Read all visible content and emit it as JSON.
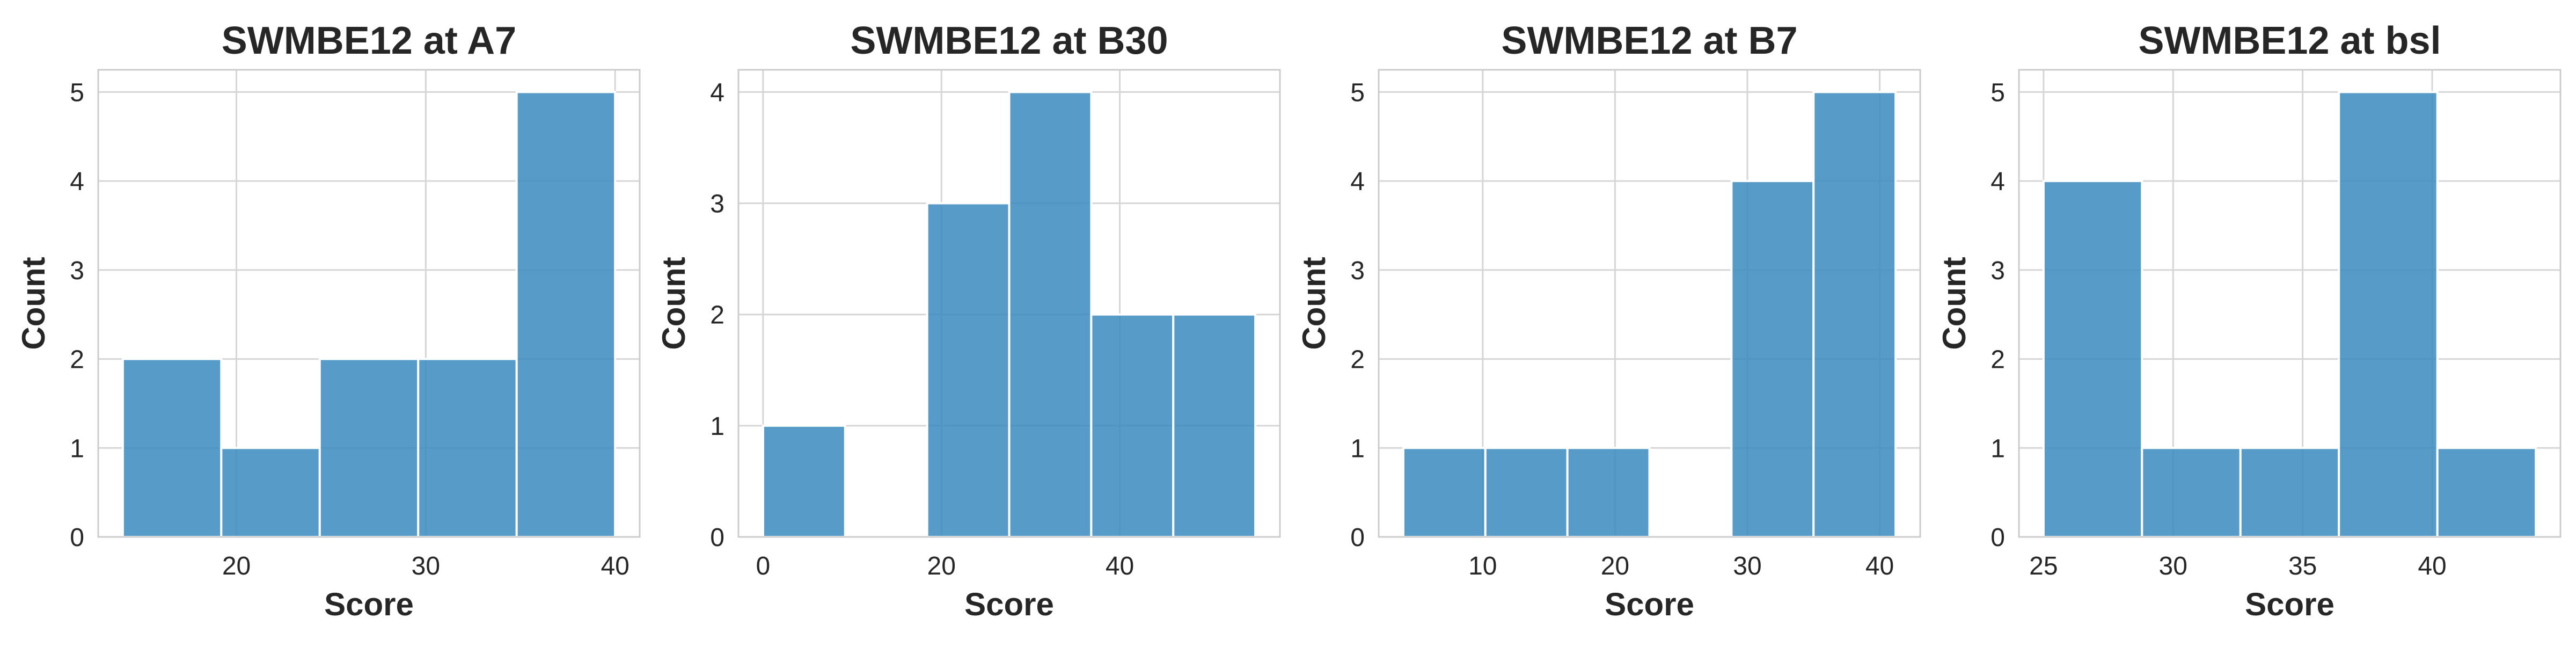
{
  "chart_data": [
    {
      "type": "bar",
      "title": "SWMBE12 at A7",
      "xlabel": "Score",
      "ylabel": "Count",
      "bin_edges": [
        14,
        19.2,
        24.4,
        29.6,
        34.8,
        40
      ],
      "values": [
        2,
        1,
        2,
        2,
        5
      ],
      "xlim": [
        12.7,
        41.3
      ],
      "ylim": [
        0,
        5.25
      ],
      "xticks": [
        20,
        30,
        40
      ],
      "yticks": [
        0,
        1,
        2,
        3,
        4,
        5
      ],
      "grid": true,
      "color": "#3a8bc0"
    },
    {
      "type": "bar",
      "title": "SWMBE12 at B30",
      "xlabel": "Score",
      "ylabel": "Count",
      "bin_edges": [
        0,
        9.2,
        18.4,
        27.6,
        36.8,
        46,
        55.2
      ],
      "values": [
        1,
        0,
        3,
        4,
        2,
        2
      ],
      "xlim": [
        -2.76,
        57.96
      ],
      "ylim": [
        0,
        4.2
      ],
      "xticks": [
        0,
        20,
        40
      ],
      "yticks": [
        0,
        1,
        2,
        3,
        4
      ],
      "grid": true,
      "color": "#3a8bc0"
    },
    {
      "type": "bar",
      "title": "SWMBE12 at B7",
      "xlabel": "Score",
      "ylabel": "Count",
      "bin_edges": [
        4,
        10.2,
        16.4,
        22.6,
        28.8,
        35,
        41.2
      ],
      "values": [
        1,
        1,
        1,
        0,
        4,
        5
      ],
      "xlim": [
        2.14,
        43.06
      ],
      "ylim": [
        0,
        5.25
      ],
      "xticks": [
        10,
        20,
        30,
        40
      ],
      "yticks": [
        0,
        1,
        2,
        3,
        4,
        5
      ],
      "grid": true,
      "color": "#3a8bc0"
    },
    {
      "type": "bar",
      "title": "SWMBE12 at bsl",
      "xlabel": "Score",
      "ylabel": "Count",
      "bin_edges": [
        25,
        28.8,
        32.6,
        36.4,
        40.2,
        44
      ],
      "values": [
        4,
        1,
        1,
        5,
        1
      ],
      "xlim": [
        24.05,
        44.95
      ],
      "ylim": [
        0,
        5.25
      ],
      "xticks": [
        25,
        30,
        35,
        40
      ],
      "yticks": [
        0,
        1,
        2,
        3,
        4,
        5
      ],
      "grid": true,
      "color": "#3a8bc0"
    }
  ]
}
